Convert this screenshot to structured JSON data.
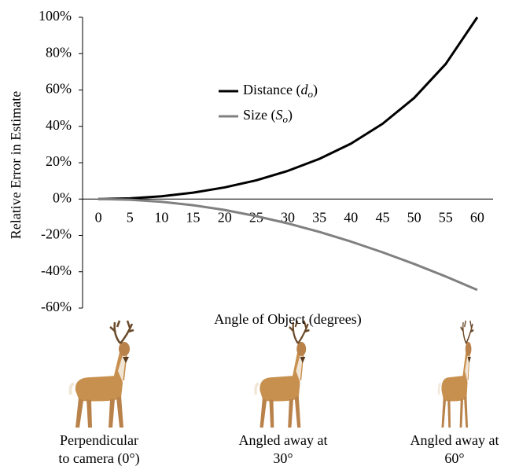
{
  "chart_data": {
    "type": "line",
    "y_label": "Relative Error in Estimate",
    "x_label": "Angle of Object (degrees)",
    "categories": [
      "0",
      "5",
      "10",
      "15",
      "20",
      "25",
      "30",
      "35",
      "40",
      "45",
      "50",
      "55",
      "60"
    ],
    "series": [
      {
        "name": "Distance (do)",
        "color": "#000000",
        "values": [
          0,
          0.4,
          1.5,
          3.5,
          6.4,
          10.3,
          15.5,
          22.1,
          30.5,
          41.4,
          55.6,
          74.3,
          100
        ]
      },
      {
        "name": "Size (So)",
        "color": "#808080",
        "values": [
          0,
          -0.4,
          -1.5,
          -3.4,
          -6.0,
          -9.4,
          -13.4,
          -18.1,
          -23.4,
          -29.3,
          -35.7,
          -42.6,
          -50
        ]
      }
    ],
    "ylim": [
      -60,
      100
    ],
    "yticks": [
      {
        "value": -60,
        "label": "-60%"
      },
      {
        "value": -40,
        "label": "-40%"
      },
      {
        "value": -20,
        "label": "-20%"
      },
      {
        "value": 0,
        "label": "0%"
      },
      {
        "value": 20,
        "label": "20%"
      },
      {
        "value": 40,
        "label": "40%"
      },
      {
        "value": 60,
        "label": "60%"
      },
      {
        "value": 80,
        "label": "80%"
      },
      {
        "value": 100,
        "label": "100%"
      }
    ],
    "grid": false
  },
  "captions": [
    [
      "Perpendicular",
      "to camera (0°)"
    ],
    [
      "Angled away at",
      "30°"
    ],
    [
      "Angled away at",
      "60°"
    ]
  ]
}
